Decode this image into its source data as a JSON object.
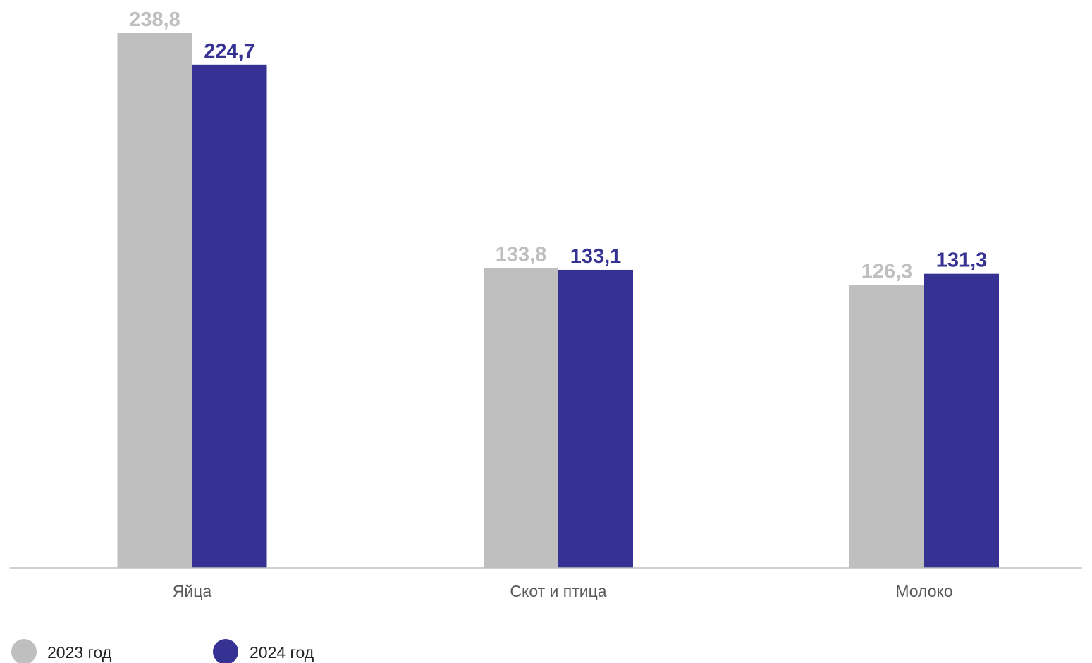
{
  "chart_data": {
    "type": "bar",
    "categories": [
      "Яйца",
      "Скот и птица",
      "Молоко"
    ],
    "series": [
      {
        "name": "2023 год",
        "values": [
          238.8,
          133.8,
          126.3
        ],
        "labels": [
          "238,8",
          "133,8",
          "126,3"
        ],
        "color": "#BFBFBF"
      },
      {
        "name": "2024 год",
        "values": [
          224.7,
          133.1,
          131.3
        ],
        "labels": [
          "224,7",
          "133,1",
          "131,3"
        ],
        "color": "#353293"
      }
    ],
    "ylim": [
      0,
      238.8
    ],
    "grid": false,
    "legend_position": "bottom-left",
    "title": "",
    "xlabel": "",
    "ylabel": ""
  }
}
